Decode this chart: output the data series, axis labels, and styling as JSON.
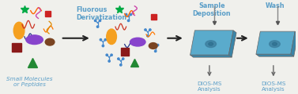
{
  "bg_color": "#f0f0ec",
  "title_color": "#5a9ec8",
  "arrow_color": "#222222",
  "step1_label": "Small Molecules\nor Peptides",
  "step2_label": "Fluorous\nDerivatization",
  "step3_label": "Sample\nDeposition",
  "step4_label": "Wash",
  "step3_sub": "DIOS-MS\nAnalysis",
  "step4_sub": "DIOS-MS\nAnalysis",
  "fig_width": 3.77,
  "fig_height": 1.2,
  "dpi": 100,
  "label_fontsize": 5.2,
  "title_fontsize": 5.8,
  "plate_color": "#5aabcc",
  "plate_light": "#85c8e0",
  "plate_dark": "#3a85a8",
  "plate_edge": "#666666"
}
